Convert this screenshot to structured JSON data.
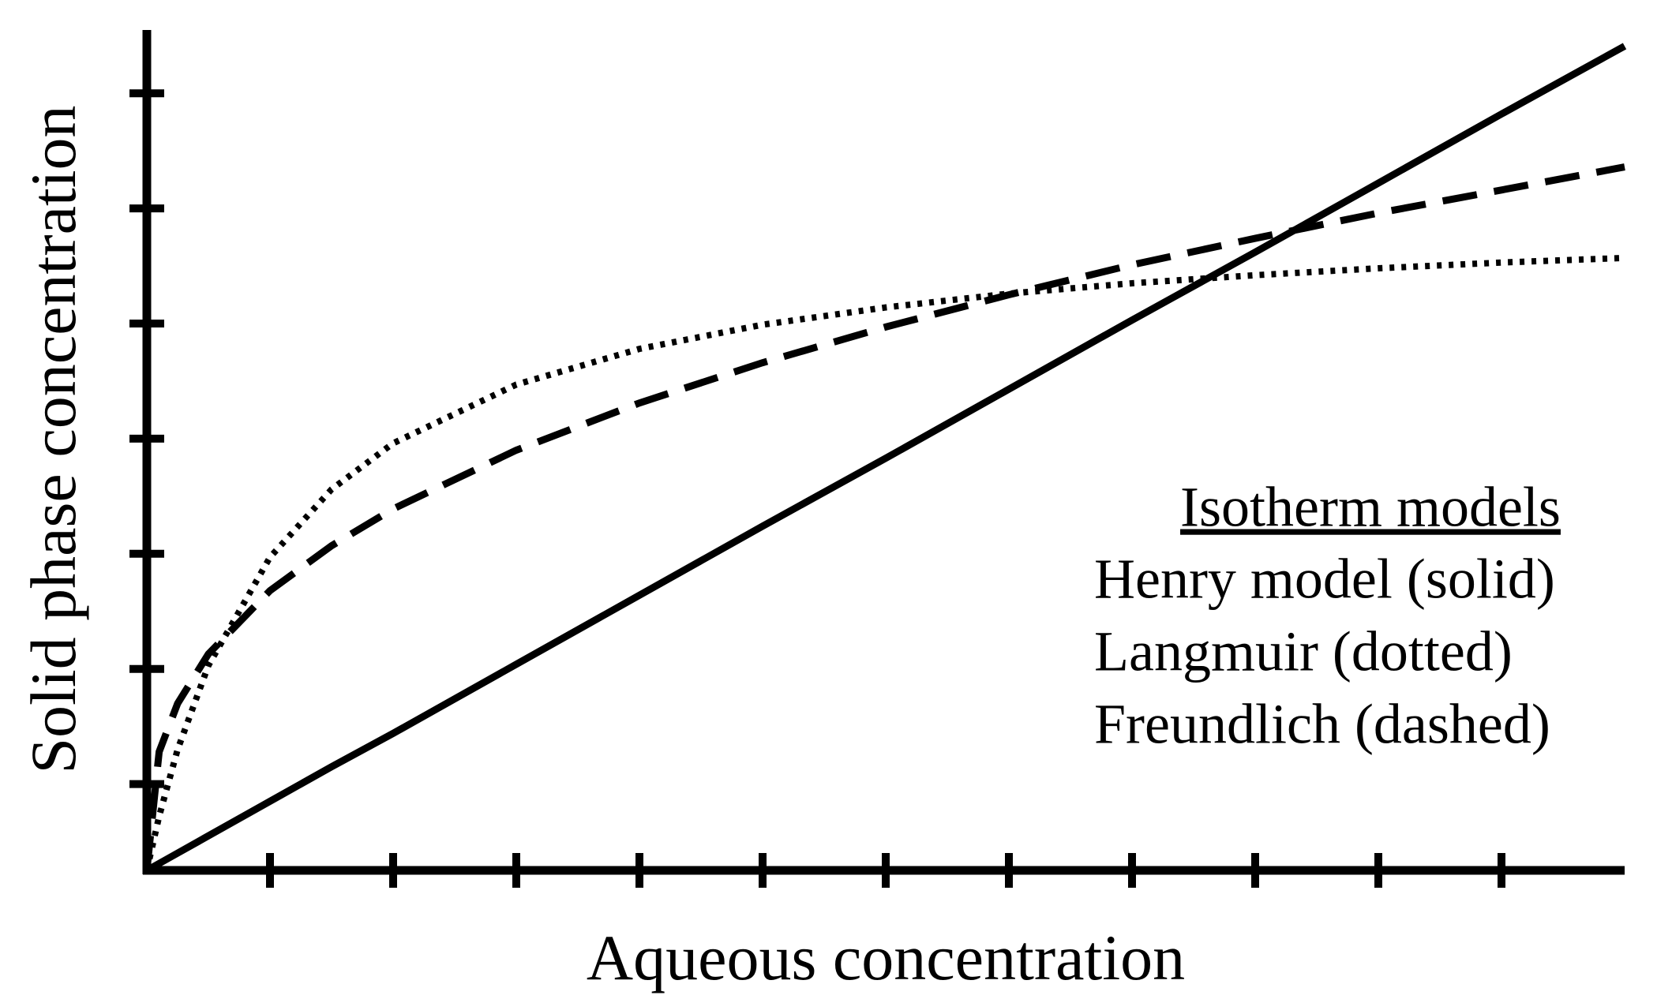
{
  "chart_data": {
    "type": "line",
    "x_label": "Aqueous concentration",
    "y_label": "Solid phase concentration",
    "legend_title": "Isotherm models",
    "x": [
      0,
      0.1,
      0.25,
      0.5,
      1,
      1.5,
      2,
      3,
      4,
      5,
      6,
      7,
      8,
      9,
      10,
      11,
      12
    ],
    "series": [
      {
        "name": "Henry model (solid)",
        "color": "#000000",
        "dash": "solid",
        "values": [
          0,
          0.06,
          0.15,
          0.3,
          0.6,
          0.9,
          1.19,
          1.79,
          2.39,
          2.99,
          3.58,
          4.18,
          4.78,
          5.37,
          5.97,
          6.57,
          7.16
        ]
      },
      {
        "name": "Langmuir (dotted)",
        "color": "#000000",
        "dash": "dotted",
        "values": [
          0,
          0.47,
          1.05,
          1.78,
          2.72,
          3.31,
          3.71,
          4.22,
          4.53,
          4.74,
          4.89,
          5.01,
          5.1,
          5.17,
          5.23,
          5.28,
          5.32
        ]
      },
      {
        "name": "Freundlich (dashed)",
        "color": "#000000",
        "dash": "dashed",
        "values": [
          0,
          1.03,
          1.45,
          1.88,
          2.43,
          2.82,
          3.14,
          3.65,
          4.06,
          4.41,
          4.72,
          5.0,
          5.26,
          5.49,
          5.71,
          5.91,
          6.11
        ]
      }
    ],
    "xlim": [
      0,
      12
    ],
    "xticks": [
      1,
      2,
      3,
      4,
      5,
      6,
      7,
      8,
      9,
      10,
      11
    ],
    "ylim": [
      0,
      7.3
    ],
    "yticks": [
      0.75,
      1.75,
      2.75,
      3.75,
      4.75,
      5.75,
      6.75
    ],
    "grid": false,
    "legend": "right"
  }
}
